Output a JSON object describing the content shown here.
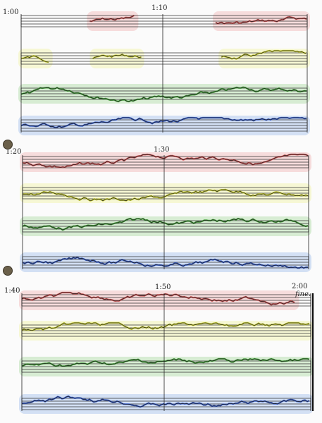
{
  "score": {
    "systems": [
      {
        "start_label": "1:00",
        "mid_label": "1:10",
        "end_label": ""
      },
      {
        "start_label": "1:20",
        "mid_label": "1:30",
        "end_label": ""
      },
      {
        "start_label": "1:40",
        "mid_label": "1:50",
        "end_label": "2:00"
      }
    ],
    "end_marking": "fine.",
    "staff_colors": [
      "#c94c4c",
      "#c8cc2e",
      "#3f9a35",
      "#2f57c8"
    ],
    "staff_wash_colors": [
      "#e88080",
      "#e8ea60",
      "#6dc05a",
      "#5a8ee0"
    ]
  }
}
